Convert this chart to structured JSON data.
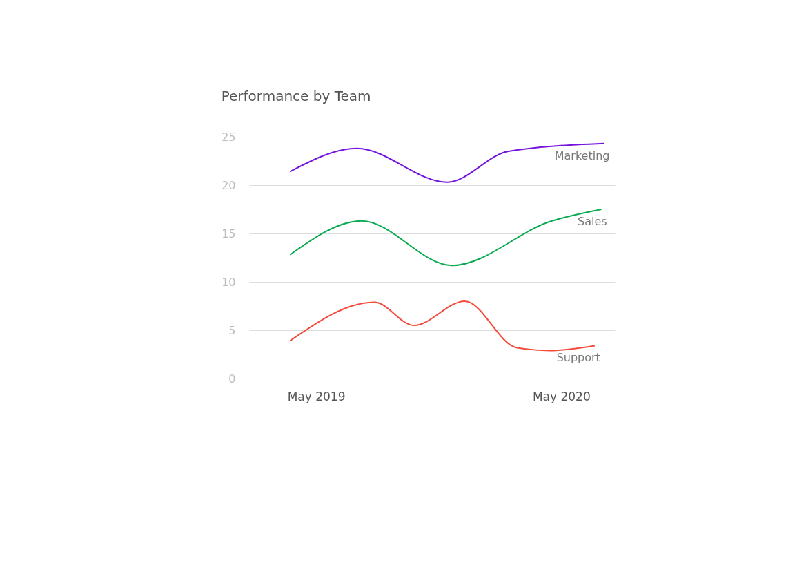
{
  "chart_data": {
    "type": "line",
    "title": "Performance by Team",
    "x": [
      "2019-03-23",
      "2019-07-01",
      "2019-11-13",
      "2020-02-12",
      "2020-07-04"
    ],
    "series": [
      {
        "name": "Marketing",
        "color": "#7413dc",
        "values": [
          21.4,
          23.8,
          20.3,
          23.5,
          24.3
        ]
      },
      {
        "name": "Sales",
        "color": "#0aab50",
        "values": [
          12.8,
          16.3,
          11.7,
          16.3,
          17.5
        ],
        "x": [
          "2019-03-23",
          "2019-07-08",
          "2019-11-20",
          "2020-04-17",
          "2020-06-30"
        ]
      },
      {
        "name": "Support",
        "color": "#f44a3a",
        "values": [
          3.9,
          7.9,
          5.5,
          8.0,
          3.2,
          2.9,
          3.4
        ],
        "x": [
          "2019-03-23",
          "2019-07-27",
          "2019-09-24",
          "2019-12-09",
          "2020-02-24",
          "2020-04-14",
          "2020-06-20"
        ]
      }
    ],
    "xlim": [
      "2019-01-21",
      "2020-07-20"
    ],
    "xticks": [
      {
        "value": "2019-05-01",
        "label": "May 2019"
      },
      {
        "value": "2020-05-01",
        "label": "May 2020"
      }
    ],
    "ylim": [
      0,
      25
    ],
    "yticks": [
      0,
      5,
      10,
      15,
      20,
      25
    ],
    "grid": "y",
    "marker": "none",
    "line_style": "solid"
  }
}
